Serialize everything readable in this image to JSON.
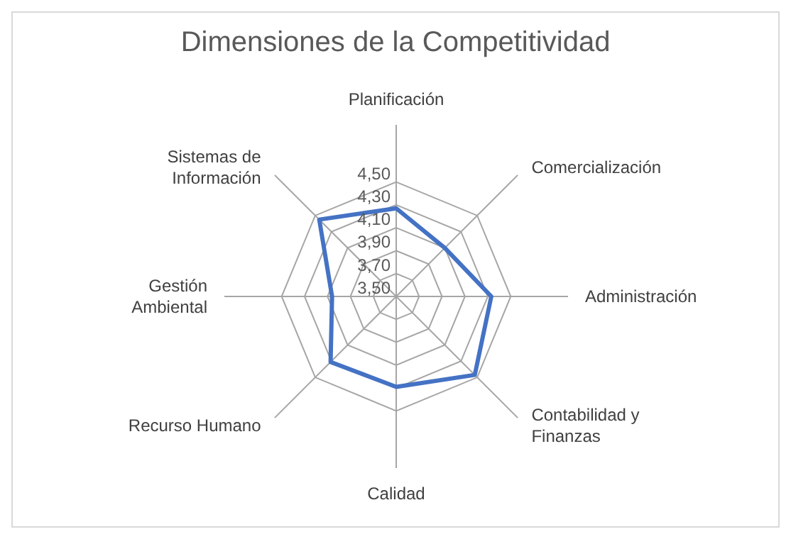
{
  "chart_data": {
    "type": "radar",
    "title": "Dimensiones de la Competitividad",
    "categories": [
      "Planificación",
      "Comercialización",
      "Administración",
      "Contabilidad y Finanzas",
      "Calidad",
      "Recurso Humano",
      "Gestión Ambiental",
      "Sistemas de Información"
    ],
    "series": [
      {
        "color": "#4472c4",
        "values": [
          4.27,
          4.1,
          4.33,
          4.47,
          4.29,
          4.31,
          4.06,
          4.45
        ]
      }
    ],
    "ylim": [
      3.5,
      4.5
    ],
    "yticks": [
      {
        "value": 3.5,
        "label": "3,50"
      },
      {
        "value": 3.7,
        "label": "3,70"
      },
      {
        "value": 3.9,
        "label": "3,90"
      },
      {
        "value": 4.1,
        "label": "4,10"
      },
      {
        "value": 4.3,
        "label": "4,30"
      },
      {
        "value": 4.5,
        "label": "4,50"
      }
    ],
    "grid": true,
    "legend": false,
    "marker": "none"
  }
}
